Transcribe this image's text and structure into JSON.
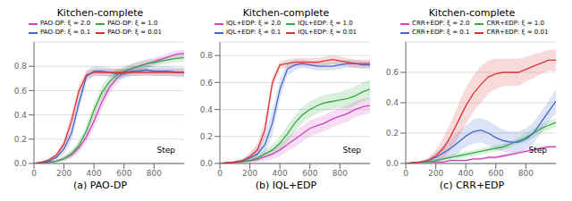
{
  "chart_data": [
    {
      "type": "line",
      "title": "Kitchen-complete",
      "subtitle": "(a) PAO-DP",
      "annotations": [
        "Step"
      ],
      "grid": true,
      "legend": "upper left",
      "x": [
        0,
        50,
        100,
        150,
        200,
        250,
        300,
        350,
        400,
        450,
        500,
        550,
        600,
        650,
        700,
        750,
        800,
        850,
        900,
        950,
        1000
      ],
      "xlim": [
        0,
        1000
      ],
      "xticks": [
        0,
        200,
        400,
        600,
        800
      ],
      "ylim": [
        0,
        1.0
      ],
      "yticks": [
        {
          "value": 0,
          "label": "0.0"
        },
        0.2,
        0.4,
        0.6,
        0.8
      ],
      "series": [
        {
          "name": "PAO-DP: ξ = 2.0",
          "color": "#cc44bb",
          "values": [
            0.0,
            0.005,
            0.01,
            0.02,
            0.04,
            0.07,
            0.13,
            0.22,
            0.35,
            0.5,
            0.62,
            0.7,
            0.75,
            0.78,
            0.8,
            0.82,
            0.84,
            0.86,
            0.88,
            0.9,
            0.905
          ],
          "std": [
            0.0,
            0.003,
            0.005,
            0.01,
            0.02,
            0.03,
            0.04,
            0.05,
            0.06,
            0.06,
            0.05,
            0.05,
            0.04,
            0.04,
            0.04,
            0.04,
            0.03,
            0.03,
            0.03,
            0.03,
            0.03
          ]
        },
        {
          "name": "PAO-DP: ξ = 1.0",
          "color": "#33aa44",
          "values": [
            0.0,
            0.005,
            0.01,
            0.02,
            0.04,
            0.08,
            0.15,
            0.27,
            0.44,
            0.58,
            0.67,
            0.73,
            0.76,
            0.78,
            0.8,
            0.82,
            0.83,
            0.845,
            0.855,
            0.865,
            0.87
          ],
          "std": [
            0.0,
            0.003,
            0.005,
            0.01,
            0.02,
            0.03,
            0.04,
            0.05,
            0.05,
            0.05,
            0.05,
            0.05,
            0.04,
            0.04,
            0.04,
            0.03,
            0.03,
            0.03,
            0.03,
            0.03,
            0.03
          ]
        },
        {
          "name": "PAO-DP: ξ = 0.1",
          "color": "#4466cc",
          "values": [
            0.0,
            0.01,
            0.02,
            0.05,
            0.12,
            0.25,
            0.5,
            0.72,
            0.76,
            0.76,
            0.75,
            0.74,
            0.74,
            0.76,
            0.76,
            0.77,
            0.76,
            0.76,
            0.76,
            0.75,
            0.75
          ],
          "std": [
            0.0,
            0.005,
            0.01,
            0.02,
            0.04,
            0.06,
            0.06,
            0.05,
            0.04,
            0.04,
            0.04,
            0.04,
            0.04,
            0.04,
            0.04,
            0.04,
            0.04,
            0.04,
            0.04,
            0.04,
            0.04
          ]
        },
        {
          "name": "PAO-DP: ξ = 0.01",
          "color": "#dd3333",
          "values": [
            0.0,
            0.01,
            0.03,
            0.07,
            0.16,
            0.35,
            0.6,
            0.73,
            0.75,
            0.75,
            0.75,
            0.75,
            0.75,
            0.75,
            0.75,
            0.75,
            0.75,
            0.75,
            0.75,
            0.75,
            0.75
          ],
          "std": [
            0.0,
            0.005,
            0.01,
            0.02,
            0.04,
            0.06,
            0.05,
            0.03,
            0.03,
            0.03,
            0.03,
            0.03,
            0.03,
            0.03,
            0.03,
            0.03,
            0.03,
            0.03,
            0.03,
            0.03,
            0.03
          ]
        }
      ]
    },
    {
      "type": "line",
      "title": "Kitchen-complete",
      "subtitle": "(b) IQL+EDP",
      "annotations": [
        "Step"
      ],
      "grid": true,
      "legend": "upper left",
      "x": [
        0,
        50,
        100,
        150,
        200,
        250,
        300,
        350,
        400,
        450,
        500,
        550,
        600,
        650,
        700,
        750,
        800,
        850,
        900,
        950,
        1000
      ],
      "xlim": [
        0,
        1000
      ],
      "xticks": [
        0,
        200,
        400,
        600,
        800
      ],
      "ylim": [
        0,
        0.9
      ],
      "yticks": [
        {
          "value": 0,
          "label": "0.0"
        },
        0.2,
        0.4,
        0.6,
        0.8
      ],
      "series": [
        {
          "name": "IQL+EDP: ξ = 2.0",
          "color": "#cc44bb",
          "values": [
            0.0,
            0.005,
            0.01,
            0.015,
            0.02,
            0.03,
            0.05,
            0.07,
            0.1,
            0.14,
            0.18,
            0.22,
            0.26,
            0.28,
            0.3,
            0.33,
            0.35,
            0.37,
            0.4,
            0.42,
            0.43
          ],
          "std": [
            0.0,
            0.003,
            0.005,
            0.008,
            0.01,
            0.02,
            0.03,
            0.04,
            0.05,
            0.05,
            0.06,
            0.06,
            0.06,
            0.06,
            0.06,
            0.06,
            0.06,
            0.06,
            0.06,
            0.06,
            0.06
          ]
        },
        {
          "name": "IQL+EDP: ξ = 1.0",
          "color": "#33aa44",
          "values": [
            0.0,
            0.005,
            0.01,
            0.015,
            0.02,
            0.04,
            0.07,
            0.1,
            0.15,
            0.22,
            0.3,
            0.36,
            0.4,
            0.43,
            0.45,
            0.46,
            0.47,
            0.48,
            0.5,
            0.53,
            0.55
          ],
          "std": [
            0.0,
            0.003,
            0.005,
            0.008,
            0.01,
            0.02,
            0.03,
            0.04,
            0.05,
            0.06,
            0.06,
            0.06,
            0.06,
            0.06,
            0.06,
            0.06,
            0.06,
            0.07,
            0.07,
            0.07,
            0.07
          ]
        },
        {
          "name": "IQL+EDP: ξ = 0.1",
          "color": "#4466cc",
          "values": [
            0.0,
            0.005,
            0.01,
            0.02,
            0.04,
            0.07,
            0.14,
            0.3,
            0.55,
            0.7,
            0.73,
            0.74,
            0.73,
            0.72,
            0.72,
            0.72,
            0.73,
            0.74,
            0.74,
            0.73,
            0.73
          ],
          "std": [
            0.0,
            0.003,
            0.008,
            0.015,
            0.03,
            0.05,
            0.07,
            0.09,
            0.07,
            0.05,
            0.04,
            0.03,
            0.03,
            0.03,
            0.03,
            0.03,
            0.03,
            0.03,
            0.03,
            0.03,
            0.03
          ]
        },
        {
          "name": "IQL+EDP: ξ = 0.01",
          "color": "#dd3333",
          "values": [
            0.0,
            0.005,
            0.01,
            0.02,
            0.05,
            0.1,
            0.25,
            0.6,
            0.73,
            0.74,
            0.75,
            0.75,
            0.75,
            0.75,
            0.76,
            0.77,
            0.76,
            0.75,
            0.74,
            0.74,
            0.74
          ],
          "std": [
            0.0,
            0.003,
            0.008,
            0.015,
            0.03,
            0.05,
            0.06,
            0.04,
            0.03,
            0.03,
            0.03,
            0.03,
            0.03,
            0.03,
            0.03,
            0.03,
            0.03,
            0.03,
            0.03,
            0.03,
            0.03
          ]
        }
      ]
    },
    {
      "type": "line",
      "title": "Kitchen-complete",
      "subtitle": "(c) CRR+EDP",
      "annotations": [
        "Step"
      ],
      "grid": true,
      "legend": "upper left",
      "x": [
        0,
        50,
        100,
        150,
        200,
        250,
        300,
        350,
        400,
        450,
        500,
        550,
        600,
        650,
        700,
        750,
        800,
        850,
        900,
        950,
        1000
      ],
      "xlim": [
        0,
        1000
      ],
      "xticks": [
        0,
        200,
        400,
        600,
        800
      ],
      "ylim": [
        0,
        0.8
      ],
      "yticks": [
        {
          "value": 0,
          "label": "0.0"
        },
        0.2,
        0.4,
        0.6
      ],
      "series": [
        {
          "name": "CRR+EDP: ξ = 2.0",
          "color": "#cc44bb",
          "values": [
            0.0,
            0.005,
            0.01,
            0.01,
            0.01,
            0.01,
            0.02,
            0.02,
            0.02,
            0.03,
            0.03,
            0.04,
            0.04,
            0.05,
            0.06,
            0.07,
            0.08,
            0.09,
            0.1,
            0.11,
            0.11
          ],
          "std": [
            0.0,
            0.002,
            0.004,
            0.005,
            0.005,
            0.005,
            0.006,
            0.006,
            0.007,
            0.008,
            0.009,
            0.01,
            0.01,
            0.01,
            0.01,
            0.01,
            0.01,
            0.01,
            0.01,
            0.01,
            0.01
          ]
        },
        {
          "name": "CRR+EDP: ξ = 1.0",
          "color": "#33aa44",
          "values": [
            0.0,
            0.005,
            0.01,
            0.01,
            0.02,
            0.03,
            0.04,
            0.05,
            0.06,
            0.07,
            0.08,
            0.09,
            0.1,
            0.11,
            0.13,
            0.15,
            0.17,
            0.2,
            0.23,
            0.25,
            0.27
          ],
          "std": [
            0.0,
            0.002,
            0.005,
            0.007,
            0.01,
            0.01,
            0.02,
            0.02,
            0.02,
            0.02,
            0.02,
            0.02,
            0.02,
            0.02,
            0.02,
            0.02,
            0.03,
            0.03,
            0.03,
            0.03,
            0.03
          ]
        },
        {
          "name": "CRR+EDP: ξ = 0.1",
          "color": "#4466cc",
          "values": [
            0.0,
            0.005,
            0.01,
            0.02,
            0.04,
            0.07,
            0.1,
            0.14,
            0.18,
            0.21,
            0.22,
            0.2,
            0.17,
            0.15,
            0.14,
            0.14,
            0.16,
            0.2,
            0.27,
            0.34,
            0.41
          ],
          "std": [
            0.0,
            0.003,
            0.008,
            0.015,
            0.03,
            0.05,
            0.06,
            0.07,
            0.07,
            0.08,
            0.08,
            0.08,
            0.08,
            0.07,
            0.07,
            0.07,
            0.07,
            0.07,
            0.07,
            0.07,
            0.08
          ]
        },
        {
          "name": "CRR+EDP: ξ = 0.01",
          "color": "#dd3333",
          "values": [
            0.0,
            0.005,
            0.01,
            0.02,
            0.05,
            0.1,
            0.18,
            0.28,
            0.38,
            0.46,
            0.52,
            0.57,
            0.59,
            0.6,
            0.6,
            0.6,
            0.62,
            0.64,
            0.66,
            0.68,
            0.68
          ],
          "std": [
            0.0,
            0.003,
            0.008,
            0.015,
            0.04,
            0.07,
            0.09,
            0.11,
            0.12,
            0.12,
            0.12,
            0.11,
            0.1,
            0.09,
            0.09,
            0.09,
            0.08,
            0.08,
            0.07,
            0.07,
            0.07
          ]
        }
      ]
    }
  ]
}
